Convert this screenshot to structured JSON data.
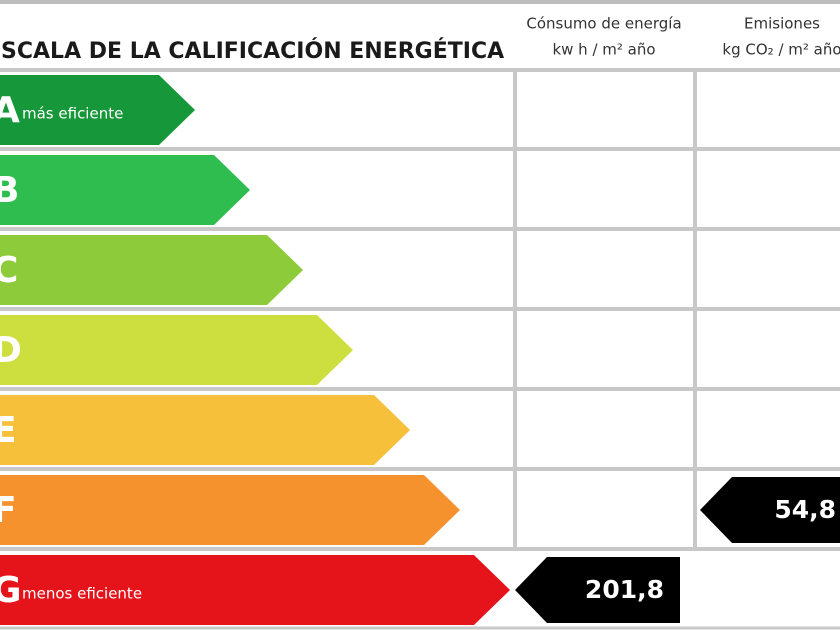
{
  "header": {
    "title": "ESCALA DE LA CALIFICACIÓN ENERGÉTICA",
    "columns": [
      {
        "line1": "Cónsumo de energía",
        "line2": "kw h / m² año"
      },
      {
        "line1": "Emisiones",
        "line2": "kg CO₂ / m² año"
      }
    ]
  },
  "ratings": [
    {
      "letter": "A",
      "note": "más eficiente"
    },
    {
      "letter": "B"
    },
    {
      "letter": "C"
    },
    {
      "letter": "D"
    },
    {
      "letter": "E"
    },
    {
      "letter": "F",
      "emissions": "54,8"
    },
    {
      "letter": "G",
      "note": "menos eficiente",
      "consumption": "201,8"
    }
  ]
}
